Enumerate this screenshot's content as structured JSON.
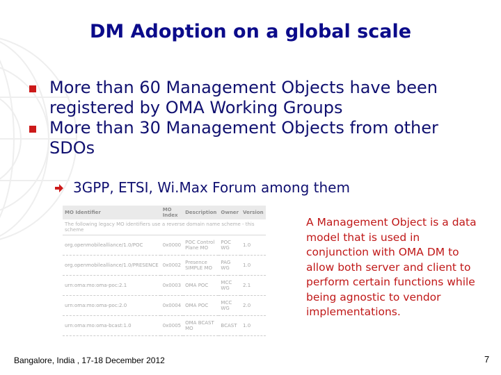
{
  "slide": {
    "title": "DM Adoption on a global scale",
    "bullets": [
      "More than  60 Management Objects have been registered by OMA Working Groups",
      "More than 30 Management Objects from other SDOs"
    ],
    "sub_bullet": "3GPP, ETSI, Wi.Max Forum among them",
    "callout": "A Management Object is a data model that is used in conjunction with OMA DM to allow both server and client to perform certain functions while being agnostic to vendor implementations.",
    "footer_left": "Bangalore, India , 17-18 December 2012",
    "page_number": "7"
  },
  "table": {
    "headers": [
      "MO Identifier",
      "MO Index",
      "Description",
      "Owner",
      "Version"
    ],
    "note": "The following legacy MO identifiers use a reverse domain name scheme - this scheme",
    "rows": [
      [
        "org.openmobilealliance/1.0/POC",
        "0x0000",
        "POC Control Plane MO",
        "POC WG",
        "1.0"
      ],
      [
        "org.openmobilealliance/1.0/PRESENCE",
        "0x0002",
        "Presence SIMPLE MO",
        "PAG WG",
        "1.0"
      ],
      [
        "urn:oma:mo:oma-poc:2.1",
        "0x0003",
        "OMA POC",
        "MCC WG",
        "2.1"
      ],
      [
        "urn:oma:mo:oma-poc:2.0",
        "0x0004",
        "OMA POC",
        "MCC WG",
        "2.0"
      ],
      [
        "urn:oma:mo:oma-bcast:1.0",
        "0x0005",
        "OMA BCAST MO",
        "BCAST",
        "1.0"
      ]
    ]
  },
  "colors": {
    "title": "#0b0b8a",
    "body_text": "#101070",
    "bullet_marker": "#cc1a1a",
    "callout_text": "#c01818"
  },
  "icons": {
    "bullet": "red-square-icon",
    "sub_bullet": "red-arrow-icon",
    "background": "globe-watermark-icon"
  }
}
